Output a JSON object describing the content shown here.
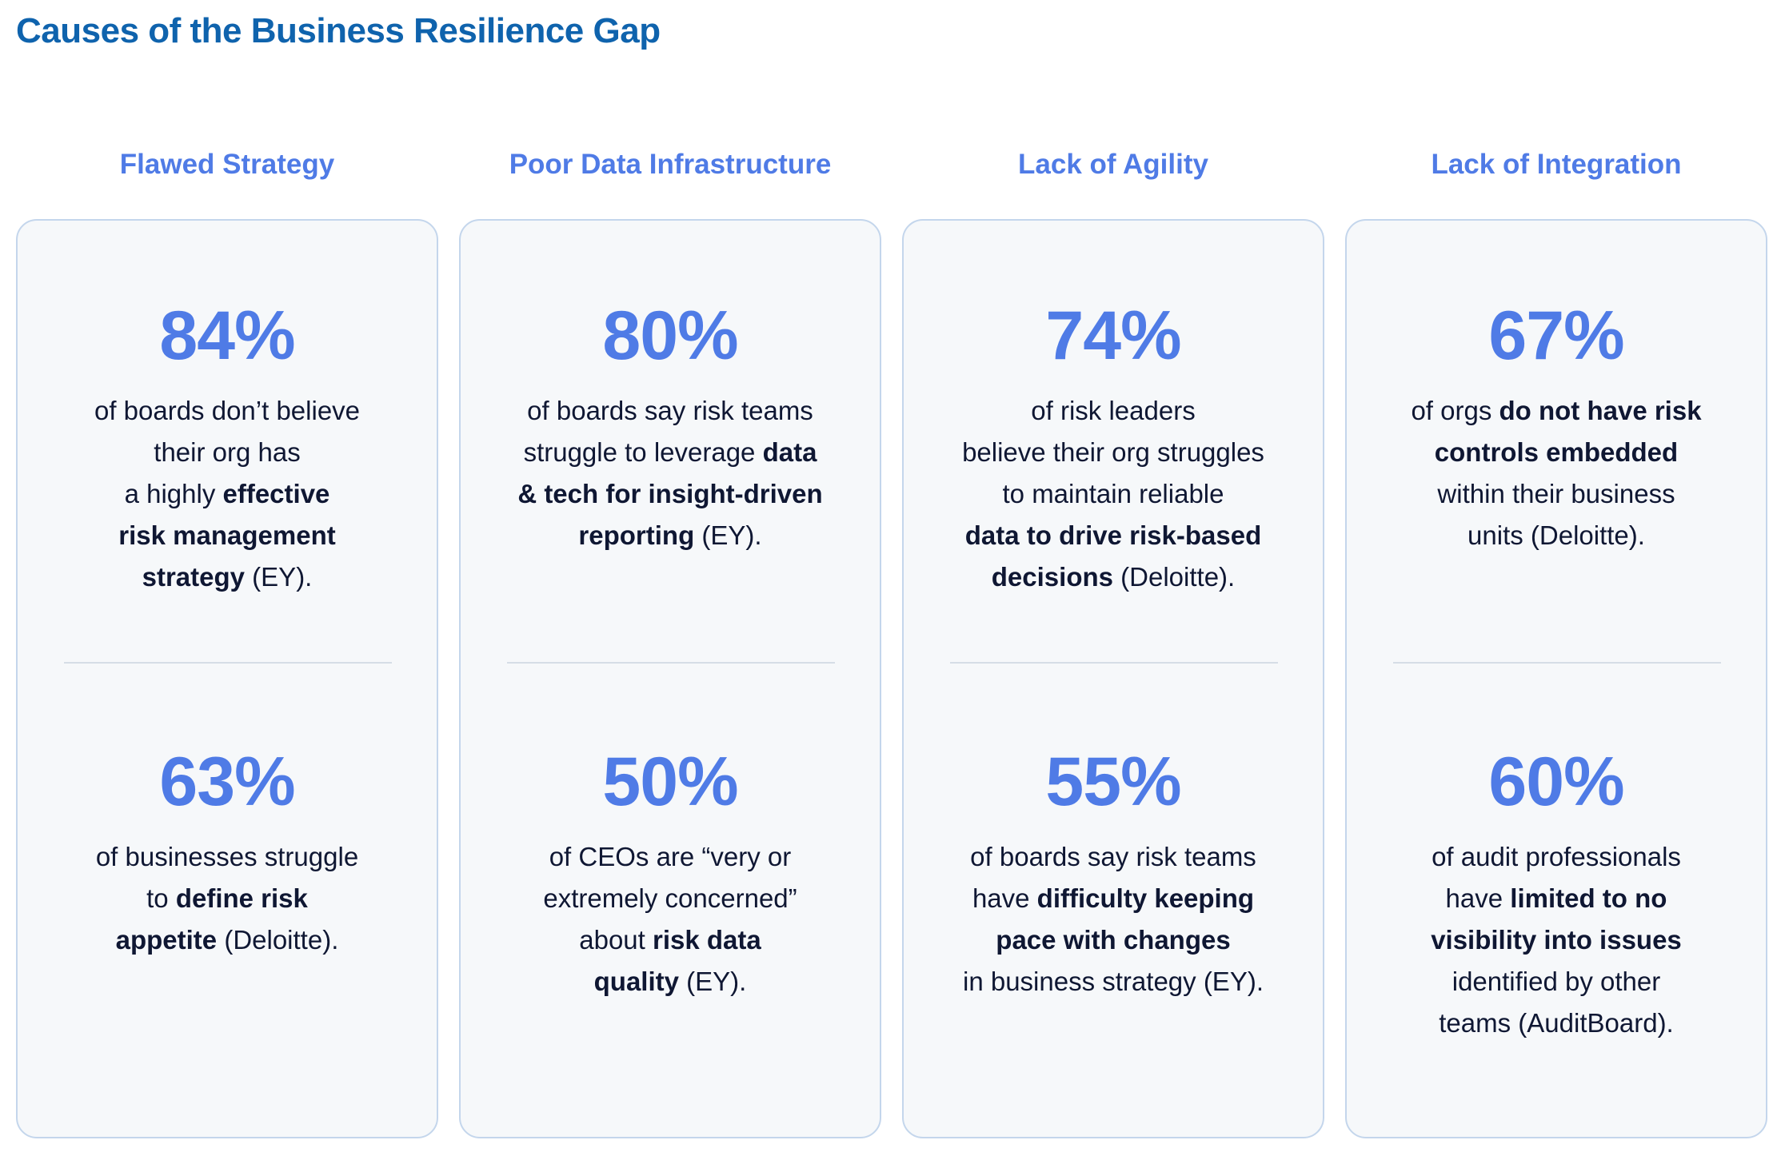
{
  "title": "Causes of the Business Resilience Gap",
  "colors": {
    "title": "#0f63ad",
    "accent": "#4f7be6",
    "text": "#0f1733",
    "card_bg": "#f6f8fa",
    "card_border": "#c4d6ec"
  },
  "columns": [
    {
      "heading": "Flawed Strategy",
      "stats": [
        {
          "value": "84%",
          "lines": [
            [
              {
                "t": "of boards don’t believe",
                "b": false
              }
            ],
            [
              {
                "t": "their org has",
                "b": false
              }
            ],
            [
              {
                "t": "a highly ",
                "b": false
              },
              {
                "t": "effective",
                "b": true
              }
            ],
            [
              {
                "t": "risk management",
                "b": true
              }
            ],
            [
              {
                "t": "strategy",
                "b": true
              },
              {
                "t": " (EY).",
                "b": false
              }
            ]
          ]
        },
        {
          "value": "63%",
          "lines": [
            [
              {
                "t": "of businesses struggle",
                "b": false
              }
            ],
            [
              {
                "t": "to ",
                "b": false
              },
              {
                "t": "define risk",
                "b": true
              }
            ],
            [
              {
                "t": "appetite",
                "b": true
              },
              {
                "t": " (Deloitte).",
                "b": false
              }
            ]
          ]
        }
      ]
    },
    {
      "heading": "Poor Data Infrastructure",
      "stats": [
        {
          "value": "80%",
          "lines": [
            [
              {
                "t": "of boards say risk teams",
                "b": false
              }
            ],
            [
              {
                "t": "struggle to leverage ",
                "b": false
              },
              {
                "t": "data",
                "b": true
              }
            ],
            [
              {
                "t": "& tech for insight-driven",
                "b": true
              }
            ],
            [
              {
                "t": "reporting",
                "b": true
              },
              {
                "t": " (EY).",
                "b": false
              }
            ]
          ]
        },
        {
          "value": "50%",
          "lines": [
            [
              {
                "t": "of CEOs are “very or",
                "b": false
              }
            ],
            [
              {
                "t": "extremely concerned”",
                "b": false
              }
            ],
            [
              {
                "t": "about ",
                "b": false
              },
              {
                "t": "risk data",
                "b": true
              }
            ],
            [
              {
                "t": "quality",
                "b": true
              },
              {
                "t": " (EY).",
                "b": false
              }
            ]
          ]
        }
      ]
    },
    {
      "heading": "Lack of Agility",
      "stats": [
        {
          "value": "74%",
          "lines": [
            [
              {
                "t": "of risk leaders",
                "b": false
              }
            ],
            [
              {
                "t": "believe their org struggles",
                "b": false
              }
            ],
            [
              {
                "t": "to maintain reliable",
                "b": false
              }
            ],
            [
              {
                "t": "data to drive risk-based",
                "b": true
              }
            ],
            [
              {
                "t": "decisions",
                "b": true
              },
              {
                "t": " (Deloitte).",
                "b": false
              }
            ]
          ]
        },
        {
          "value": "55%",
          "lines": [
            [
              {
                "t": "of boards say risk teams",
                "b": false
              }
            ],
            [
              {
                "t": "have ",
                "b": false
              },
              {
                "t": "difficulty keeping",
                "b": true
              }
            ],
            [
              {
                "t": "pace with changes",
                "b": true
              }
            ],
            [
              {
                "t": "in business strategy (EY).",
                "b": false
              }
            ]
          ]
        }
      ]
    },
    {
      "heading": "Lack of Integration",
      "stats": [
        {
          "value": "67%",
          "lines": [
            [
              {
                "t": "of orgs ",
                "b": false
              },
              {
                "t": "do not have risk",
                "b": true
              }
            ],
            [
              {
                "t": "controls embedded",
                "b": true
              }
            ],
            [
              {
                "t": "within their business",
                "b": false
              }
            ],
            [
              {
                "t": "units (Deloitte).",
                "b": false
              }
            ]
          ]
        },
        {
          "value": "60%",
          "lines": [
            [
              {
                "t": "of audit professionals",
                "b": false
              }
            ],
            [
              {
                "t": "have ",
                "b": false
              },
              {
                "t": "limited to no",
                "b": true
              }
            ],
            [
              {
                "t": "visibility into issues",
                "b": true
              }
            ],
            [
              {
                "t": "identified by other",
                "b": false
              }
            ],
            [
              {
                "t": "teams (AuditBoard).",
                "b": false
              }
            ]
          ]
        }
      ]
    }
  ]
}
